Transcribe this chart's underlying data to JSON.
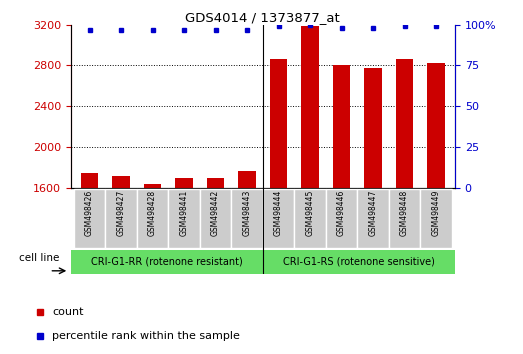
{
  "title": "GDS4014 / 1373877_at",
  "samples": [
    "GSM498426",
    "GSM498427",
    "GSM498428",
    "GSM498441",
    "GSM498442",
    "GSM498443",
    "GSM498444",
    "GSM498445",
    "GSM498446",
    "GSM498447",
    "GSM498448",
    "GSM498449"
  ],
  "counts": [
    1740,
    1710,
    1640,
    1690,
    1690,
    1760,
    2860,
    3190,
    2800,
    2780,
    2860,
    2820
  ],
  "percentiles": [
    97,
    97,
    97,
    97,
    97,
    97,
    99,
    100,
    98,
    98,
    99,
    99
  ],
  "group1_label": "CRI-G1-RR (rotenone resistant)",
  "group2_label": "CRI-G1-RS (rotenone sensitive)",
  "group1_count": 6,
  "group2_count": 6,
  "bar_color": "#cc0000",
  "dot_color": "#0000cc",
  "ylim_left": [
    1600,
    3200
  ],
  "ylim_right": [
    0,
    100
  ],
  "yticks_left": [
    1600,
    2000,
    2400,
    2800,
    3200
  ],
  "yticks_right": [
    0,
    25,
    50,
    75,
    100
  ],
  "grid_color": "#000000",
  "cell_line_label": "cell line",
  "legend_count": "count",
  "legend_percentile": "percentile rank within the sample",
  "bar_width": 0.55,
  "group_bg_color": "#66dd66",
  "sample_bg_color": "#cccccc"
}
